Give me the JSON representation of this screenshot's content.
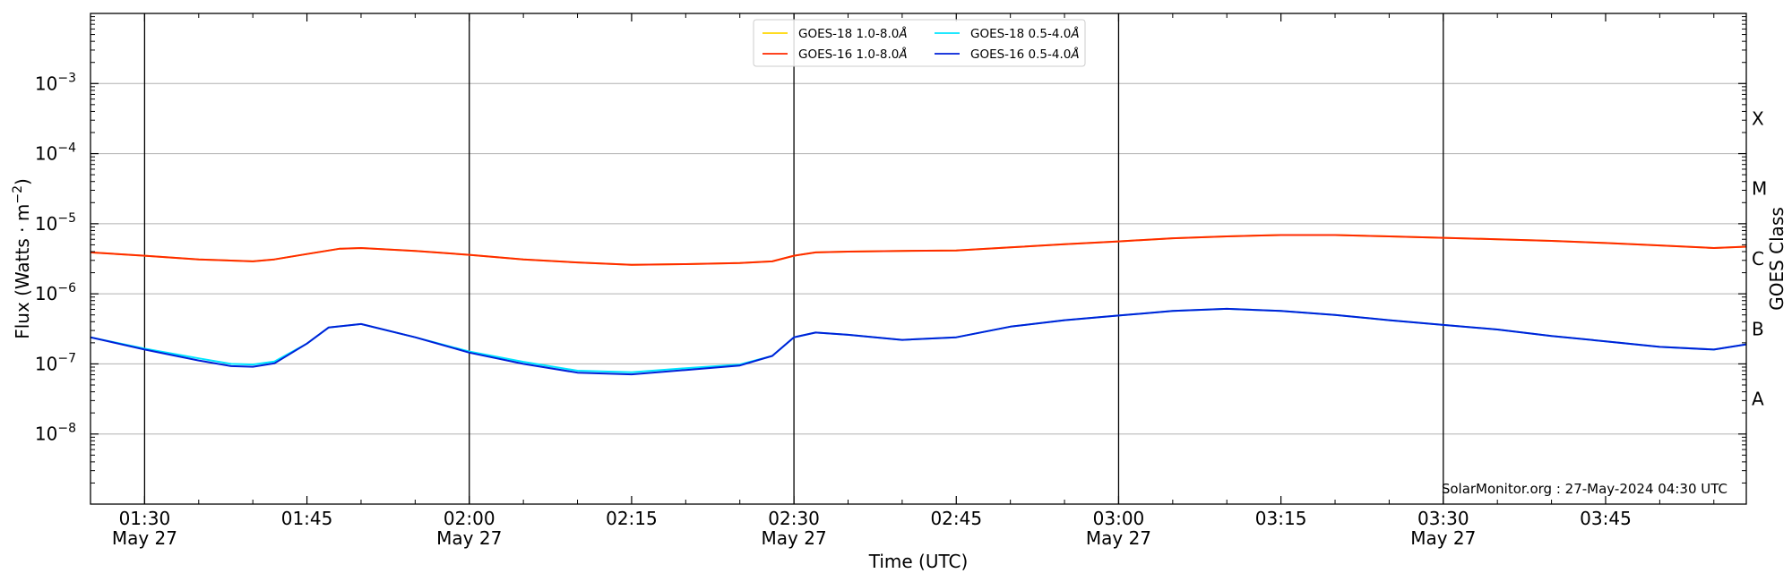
{
  "chart_data": {
    "type": "line",
    "xlabel": "Time (UTC)",
    "ylabel": "Flux (Watts · m",
    "ylabel_sup": "−2",
    "ylabel_close": ")",
    "right_ylabel": "GOES Class",
    "y_scale": "log",
    "xlim": [
      "01:25",
      "03:58"
    ],
    "ylim": [
      1e-09,
      0.01
    ],
    "grid": "horizontal",
    "legend_position": "top-center",
    "annotation": "SolarMonitor.org : 27-May-2024 04:30 UTC",
    "x_ticks": [
      {
        "time": "01:30",
        "label": "01:30",
        "date": "May 27"
      },
      {
        "time": "01:45",
        "label": "01:45",
        "date": ""
      },
      {
        "time": "02:00",
        "label": "02:00",
        "date": "May 27"
      },
      {
        "time": "02:15",
        "label": "02:15",
        "date": ""
      },
      {
        "time": "02:30",
        "label": "02:30",
        "date": "May 27"
      },
      {
        "time": "02:45",
        "label": "02:45",
        "date": ""
      },
      {
        "time": "03:00",
        "label": "03:00",
        "date": "May 27"
      },
      {
        "time": "03:15",
        "label": "03:15",
        "date": ""
      },
      {
        "time": "03:30",
        "label": "03:30",
        "date": "May 27"
      },
      {
        "time": "03:45",
        "label": "03:45",
        "date": ""
      }
    ],
    "vertical_lines": [
      "01:30",
      "02:00",
      "02:30",
      "03:00",
      "03:30"
    ],
    "y_ticks": [
      {
        "value": 1e-08,
        "base": "10",
        "exp": "−8"
      },
      {
        "value": 1e-07,
        "base": "10",
        "exp": "−7"
      },
      {
        "value": 1e-06,
        "base": "10",
        "exp": "−6"
      },
      {
        "value": 1e-05,
        "base": "10",
        "exp": "−5"
      },
      {
        "value": 0.0001,
        "base": "10",
        "exp": "−4"
      },
      {
        "value": 0.001,
        "base": "10",
        "exp": "−3"
      }
    ],
    "goes_classes": [
      {
        "label": "A",
        "value": 3.16e-08
      },
      {
        "label": "B",
        "value": 3.16e-07
      },
      {
        "label": "C",
        "value": 3.16e-06
      },
      {
        "label": "M",
        "value": 3.16e-05
      },
      {
        "label": "X",
        "value": 0.000316
      }
    ],
    "series": [
      {
        "name": "GOES-18 1.0-8.0",
        "name_suffix": "Å",
        "color": "#ffd700",
        "x": [
          "01:25",
          "01:30",
          "01:35",
          "01:40",
          "01:42",
          "01:45",
          "01:48",
          "01:50",
          "01:55",
          "02:00",
          "02:05",
          "02:10",
          "02:15",
          "02:20",
          "02:25",
          "02:28",
          "02:30",
          "02:32",
          "02:35",
          "02:40",
          "02:45",
          "02:50",
          "02:55",
          "03:00",
          "03:05",
          "03:10",
          "03:15",
          "03:20",
          "03:25",
          "03:30",
          "03:35",
          "03:40",
          "03:45",
          "03:50",
          "03:55",
          "03:58"
        ],
        "values": [
          3.9e-06,
          3.5e-06,
          3.1e-06,
          2.9e-06,
          3.1e-06,
          3.7e-06,
          4.4e-06,
          4.5e-06,
          4.1e-06,
          3.6e-06,
          3.1e-06,
          2.8e-06,
          2.6e-06,
          2.65e-06,
          2.75e-06,
          2.9e-06,
          3.5e-06,
          3.9e-06,
          4e-06,
          4.1e-06,
          4.15e-06,
          4.6e-06,
          5.1e-06,
          5.6e-06,
          6.2e-06,
          6.6e-06,
          6.9e-06,
          6.9e-06,
          6.6e-06,
          6.3e-06,
          6e-06,
          5.7e-06,
          5.3e-06,
          4.9e-06,
          4.5e-06,
          4.7e-06
        ]
      },
      {
        "name": "GOES-16 1.0-8.0",
        "name_suffix": "Å",
        "color": "#ff2a00",
        "x": [
          "01:25",
          "01:30",
          "01:35",
          "01:40",
          "01:42",
          "01:45",
          "01:48",
          "01:50",
          "01:55",
          "02:00",
          "02:05",
          "02:10",
          "02:15",
          "02:20",
          "02:25",
          "02:28",
          "02:30",
          "02:32",
          "02:35",
          "02:40",
          "02:45",
          "02:50",
          "02:55",
          "03:00",
          "03:05",
          "03:10",
          "03:15",
          "03:20",
          "03:25",
          "03:30",
          "03:35",
          "03:40",
          "03:45",
          "03:50",
          "03:55",
          "03:58"
        ],
        "values": [
          3.9e-06,
          3.5e-06,
          3.1e-06,
          2.9e-06,
          3.1e-06,
          3.7e-06,
          4.4e-06,
          4.5e-06,
          4.1e-06,
          3.6e-06,
          3.1e-06,
          2.8e-06,
          2.6e-06,
          2.65e-06,
          2.75e-06,
          2.9e-06,
          3.5e-06,
          3.9e-06,
          4e-06,
          4.1e-06,
          4.15e-06,
          4.6e-06,
          5.1e-06,
          5.6e-06,
          6.2e-06,
          6.6e-06,
          6.9e-06,
          6.9e-06,
          6.6e-06,
          6.3e-06,
          6e-06,
          5.7e-06,
          5.3e-06,
          4.9e-06,
          4.5e-06,
          4.7e-06
        ]
      },
      {
        "name": "GOES-18 0.5-4.0",
        "name_suffix": "Å",
        "color": "#00e5ff",
        "x": [
          "01:25",
          "01:30",
          "01:35",
          "01:38",
          "01:40",
          "01:42",
          "01:45",
          "01:47",
          "01:50",
          "01:55",
          "02:00",
          "02:05",
          "02:10",
          "02:15",
          "02:20",
          "02:25",
          "02:28",
          "02:30",
          "02:32",
          "02:35",
          "02:40",
          "02:45",
          "02:50",
          "02:55",
          "03:00",
          "03:05",
          "03:10",
          "03:15",
          "03:20",
          "03:25",
          "03:30",
          "03:35",
          "03:40",
          "03:45",
          "03:50",
          "03:55",
          "03:58"
        ],
        "values": [
          2.4e-07,
          1.65e-07,
          1.2e-07,
          1e-07,
          9.8e-08,
          1.08e-07,
          1.95e-07,
          3.3e-07,
          3.7e-07,
          2.4e-07,
          1.5e-07,
          1.07e-07,
          8e-08,
          7.6e-08,
          8.7e-08,
          9.8e-08,
          1.3e-07,
          2.4e-07,
          2.8e-07,
          2.6e-07,
          2.2e-07,
          2.4e-07,
          3.4e-07,
          4.2e-07,
          4.9e-07,
          5.7e-07,
          6.1e-07,
          5.7e-07,
          5e-07,
          4.2e-07,
          3.6e-07,
          3.1e-07,
          2.5e-07,
          2.1e-07,
          1.75e-07,
          1.6e-07,
          1.9e-07
        ]
      },
      {
        "name": "GOES-16 0.5-4.0",
        "name_suffix": "Å",
        "color": "#0020d8",
        "x": [
          "01:25",
          "01:30",
          "01:35",
          "01:38",
          "01:40",
          "01:42",
          "01:45",
          "01:47",
          "01:50",
          "01:55",
          "02:00",
          "02:05",
          "02:10",
          "02:15",
          "02:20",
          "02:25",
          "02:28",
          "02:30",
          "02:32",
          "02:35",
          "02:40",
          "02:45",
          "02:50",
          "02:55",
          "03:00",
          "03:05",
          "03:10",
          "03:15",
          "03:20",
          "03:25",
          "03:30",
          "03:35",
          "03:40",
          "03:45",
          "03:50",
          "03:55",
          "03:58"
        ],
        "values": [
          2.4e-07,
          1.6e-07,
          1.12e-07,
          9.3e-08,
          9.1e-08,
          1.02e-07,
          1.95e-07,
          3.3e-07,
          3.7e-07,
          2.4e-07,
          1.45e-07,
          1e-07,
          7.5e-08,
          7.1e-08,
          8.2e-08,
          9.5e-08,
          1.3e-07,
          2.4e-07,
          2.8e-07,
          2.6e-07,
          2.2e-07,
          2.4e-07,
          3.4e-07,
          4.2e-07,
          4.9e-07,
          5.7e-07,
          6.1e-07,
          5.7e-07,
          5e-07,
          4.2e-07,
          3.6e-07,
          3.1e-07,
          2.5e-07,
          2.1e-07,
          1.75e-07,
          1.6e-07,
          1.9e-07
        ]
      }
    ]
  }
}
